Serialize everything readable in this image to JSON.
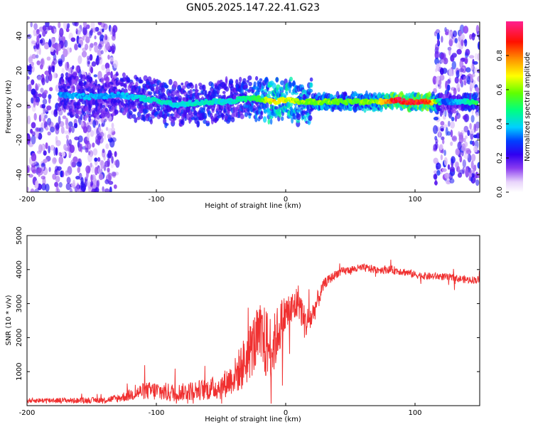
{
  "title": "GN05.2025.147.22.41.G23",
  "chart_data": [
    {
      "type": "heatmap",
      "xlabel": "Height of straight line (km)",
      "ylabel": "Frequency (Hz)",
      "xlim": [
        -200,
        150
      ],
      "ylim": [
        -50,
        48
      ],
      "xticks": [
        -200,
        -100,
        0,
        100
      ],
      "yticks": [
        -40,
        -20,
        0,
        20,
        40
      ],
      "colorbar": {
        "label": "Normalized spectral amplitude",
        "range": [
          0,
          1
        ],
        "ticks": [
          "0.0",
          "0.2",
          "0.4",
          "0.6",
          "0.8"
        ],
        "colormap": "white-violet-blue-cyan-green-yellow-orange-red-pink",
        "colors": [
          "#ffffff",
          "#d8b8f8",
          "#8a3cf0",
          "#5b00e8",
          "#0000ff",
          "#00d8ff",
          "#00ff60",
          "#90ff00",
          "#ffff00",
          "#ff8000",
          "#ff0000",
          "#ff0080"
        ]
      },
      "track": [
        {
          "x": -175,
          "freq": 6,
          "amp": 0.35
        },
        {
          "x": -150,
          "freq": 5,
          "amp": 0.38
        },
        {
          "x": -130,
          "freq": 6,
          "amp": 0.36
        },
        {
          "x": -110,
          "freq": 4,
          "amp": 0.42
        },
        {
          "x": -95,
          "freq": 2,
          "amp": 0.45
        },
        {
          "x": -85,
          "freq": 0,
          "amp": 0.4
        },
        {
          "x": -75,
          "freq": 1,
          "amp": 0.43
        },
        {
          "x": -60,
          "freq": 2,
          "amp": 0.45
        },
        {
          "x": -45,
          "freq": 2,
          "amp": 0.4
        },
        {
          "x": -30,
          "freq": 4,
          "amp": 0.48
        },
        {
          "x": -20,
          "freq": 4,
          "amp": 0.55
        },
        {
          "x": -10,
          "freq": 2,
          "amp": 0.72
        },
        {
          "x": 0,
          "freq": 3,
          "amp": 0.68
        },
        {
          "x": 10,
          "freq": 2,
          "amp": 0.62
        },
        {
          "x": 30,
          "freq": 2,
          "amp": 0.6
        },
        {
          "x": 50,
          "freq": 2,
          "amp": 0.58
        },
        {
          "x": 70,
          "freq": 2,
          "amp": 0.62
        },
        {
          "x": 85,
          "freq": 3,
          "amp": 0.95
        },
        {
          "x": 95,
          "freq": 2,
          "amp": 0.9
        },
        {
          "x": 110,
          "freq": 2,
          "amp": 0.92
        },
        {
          "x": 122,
          "freq": 2,
          "amp": 0.3
        },
        {
          "x": 135,
          "freq": 2,
          "amp": 0.4
        },
        {
          "x": 148,
          "freq": 2,
          "amp": 0.55
        }
      ],
      "noise_regions": [
        {
          "x_from": -200,
          "x_to": -130,
          "freq_from": -50,
          "freq_to": 48,
          "amp": 0.18
        },
        {
          "x_from": 115,
          "x_to": 150,
          "freq_from": -45,
          "freq_to": 45,
          "amp": 0.2
        }
      ]
    },
    {
      "type": "line",
      "xlabel": "Height of straight line (km)",
      "ylabel": "SNR (10 * v/v)",
      "xlim": [
        -200,
        150
      ],
      "ylim": [
        0,
        5000
      ],
      "xticks": [
        -200,
        -100,
        0,
        100
      ],
      "yticks": [
        1000,
        2000,
        3000,
        4000,
        5000
      ],
      "color": "#f03030",
      "series": [
        {
          "x": [
            -200,
            -180,
            -160,
            -140,
            -130,
            -120,
            -110,
            -100,
            -90,
            -80,
            -70,
            -60,
            -50,
            -40,
            -35,
            -30,
            -25,
            -20,
            -15,
            -10,
            -5,
            0,
            5,
            10,
            15,
            20,
            25,
            30,
            40,
            50,
            60,
            70,
            80,
            90,
            100,
            110,
            120,
            130,
            140,
            150
          ],
          "values": [
            150,
            160,
            150,
            170,
            210,
            320,
            430,
            430,
            380,
            400,
            450,
            480,
            560,
            850,
            1100,
            1400,
            1800,
            2000,
            1800,
            1700,
            2300,
            2700,
            2800,
            3100,
            2400,
            2600,
            3100,
            3600,
            3900,
            4000,
            4050,
            4000,
            4000,
            3950,
            3850,
            3800,
            3800,
            3750,
            3700,
            3700
          ],
          "noise": [
            70,
            80,
            80,
            90,
            120,
            180,
            250,
            300,
            280,
            260,
            300,
            320,
            380,
            500,
            700,
            800,
            900,
            1000,
            1100,
            900,
            800,
            600,
            600,
            500,
            500,
            400,
            300,
            150,
            130,
            120,
            120,
            120,
            120,
            120,
            110,
            110,
            110,
            110,
            110,
            110
          ]
        }
      ]
    }
  ]
}
